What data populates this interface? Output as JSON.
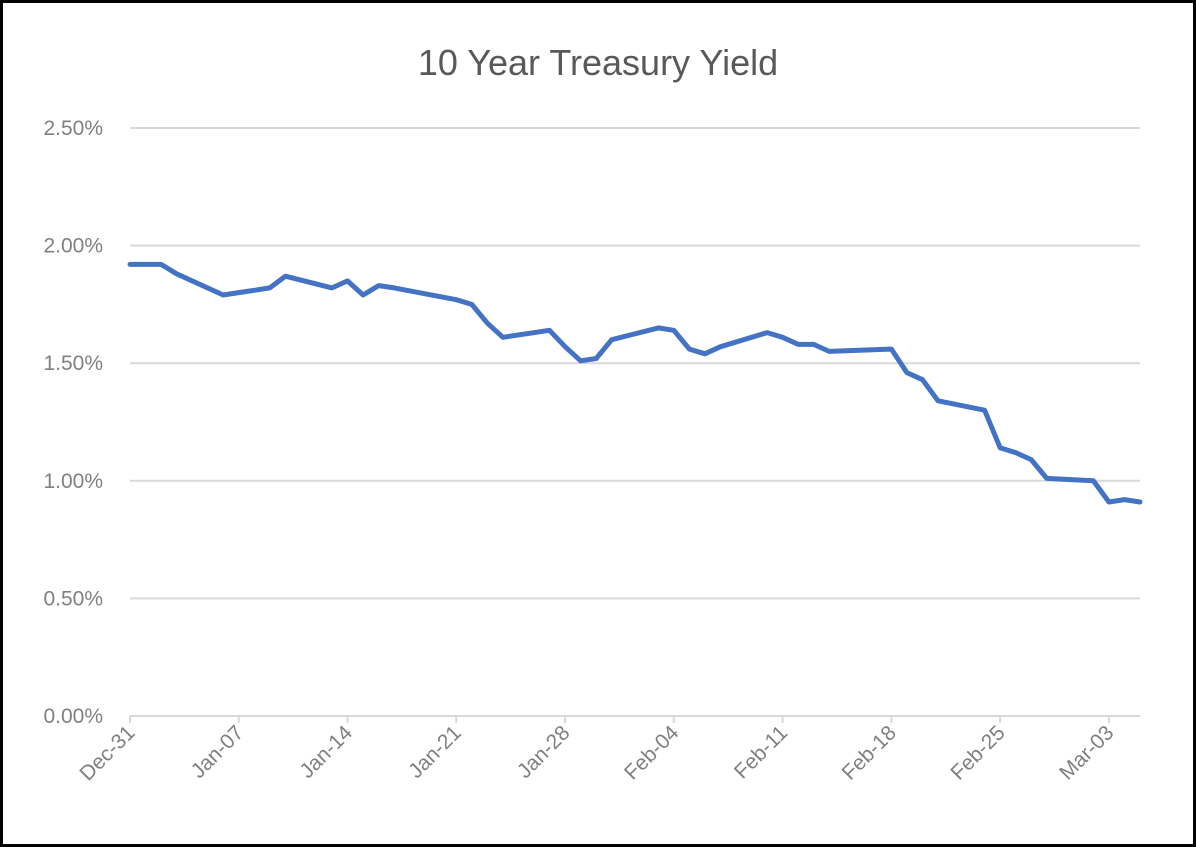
{
  "chart_data": {
    "type": "line",
    "title": "10 Year Treasury Yield",
    "xlabel": "",
    "ylabel": "",
    "ylim": [
      0,
      2.5
    ],
    "y_ticks": [
      "0.00%",
      "0.50%",
      "1.00%",
      "1.50%",
      "2.00%",
      "2.50%"
    ],
    "x_tick_labels": [
      "Dec-31",
      "Jan-07",
      "Jan-14",
      "Jan-21",
      "Jan-28",
      "Feb-04",
      "Feb-11",
      "Feb-18",
      "Feb-25",
      "Mar-03"
    ],
    "grid": true,
    "legend": "none",
    "line_color": "#4472C4",
    "grid_color": "#D9D9D9",
    "series": [
      {
        "x": [
          "Dec-31",
          "Jan-02",
          "Jan-03",
          "Jan-06",
          "Jan-07",
          "Jan-08",
          "Jan-09",
          "Jan-10",
          "Jan-13",
          "Jan-14",
          "Jan-15",
          "Jan-16",
          "Jan-17",
          "Jan-21",
          "Jan-22",
          "Jan-23",
          "Jan-24",
          "Jan-27",
          "Jan-28",
          "Jan-29",
          "Jan-30",
          "Jan-31",
          "Feb-03",
          "Feb-04",
          "Feb-05",
          "Feb-06",
          "Feb-07",
          "Feb-10",
          "Feb-11",
          "Feb-12",
          "Feb-13",
          "Feb-14",
          "Feb-18",
          "Feb-19",
          "Feb-20",
          "Feb-21",
          "Feb-24",
          "Feb-25",
          "Feb-26",
          "Feb-27",
          "Feb-28",
          "Mar-02",
          "Mar-03",
          "Mar-04",
          "Mar-05"
        ],
        "values": [
          1.92,
          1.92,
          1.88,
          1.79,
          1.8,
          1.81,
          1.82,
          1.87,
          1.82,
          1.85,
          1.79,
          1.83,
          1.82,
          1.77,
          1.75,
          1.67,
          1.61,
          1.64,
          1.57,
          1.51,
          1.52,
          1.6,
          1.65,
          1.64,
          1.56,
          1.54,
          1.57,
          1.63,
          1.61,
          1.58,
          1.58,
          1.55,
          1.56,
          1.46,
          1.43,
          1.34,
          1.3,
          1.14,
          1.12,
          1.09,
          1.01,
          1.0,
          0.91,
          0.92,
          0.91
        ]
      }
    ]
  }
}
